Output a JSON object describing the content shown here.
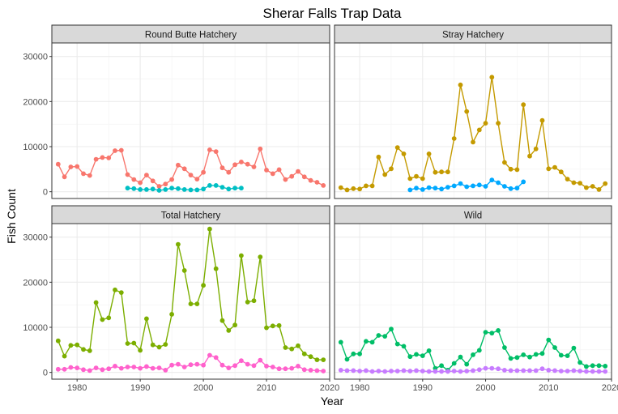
{
  "chart_data": {
    "type": "line",
    "title": "Sherar Falls Trap Data",
    "xlabel": "Year",
    "ylabel": "Fish Count",
    "xlim": [
      1976,
      2020
    ],
    "ylim": [
      -1500,
      33000
    ],
    "x_ticks": [
      1980,
      1990,
      2000,
      2010,
      2020
    ],
    "y_ticks": [
      0,
      10000,
      20000,
      30000
    ],
    "x_tick_labels": [
      "1980",
      "1990",
      "2000",
      "2010",
      "2020"
    ],
    "y_tick_labels": [
      "0",
      "10000",
      "20000",
      "30000"
    ],
    "grid": true,
    "legend": "none",
    "panels": [
      {
        "name": "Round Butte Hatchery",
        "series": [
          {
            "color": "#F8766D",
            "x": [
              1977,
              1978,
              1979,
              1980,
              1981,
              1982,
              1983,
              1984,
              1985,
              1986,
              1987,
              1988,
              1989,
              1990,
              1991,
              1992,
              1993,
              1994,
              1995,
              1996,
              1997,
              1998,
              1999,
              2000,
              2001,
              2002,
              2003,
              2004,
              2005,
              2006,
              2007,
              2008,
              2009,
              2010,
              2011,
              2012,
              2013,
              2014,
              2015,
              2016,
              2017,
              2018,
              2019
            ],
            "y": [
              6100,
              3300,
              5500,
              5600,
              4000,
              3600,
              7200,
              7600,
              7500,
              9100,
              9200,
              3800,
              2700,
              2000,
              3700,
              2400,
              1200,
              1700,
              2700,
              5900,
              5100,
              3700,
              2800,
              4300,
              9300,
              8900,
              5300,
              4300,
              6000,
              6600,
              6100,
              5500,
              9500,
              4800,
              4000,
              4900,
              2700,
              3400,
              4500,
              3300,
              2500,
              2100,
              1400
            ]
          },
          {
            "color": "#00BFC4",
            "x": [
              1988,
              1989,
              1990,
              1991,
              1992,
              1993,
              1994,
              1995,
              1996,
              1997,
              1998,
              1999,
              2000,
              2001,
              2002,
              2003,
              2004,
              2005,
              2006
            ],
            "y": [
              800,
              700,
              500,
              500,
              600,
              300,
              500,
              800,
              700,
              500,
              400,
              400,
              600,
              1400,
              1400,
              1000,
              600,
              800,
              800
            ]
          }
        ]
      },
      {
        "name": "Stray Hatchery",
        "series": [
          {
            "color": "#C49A00",
            "x": [
              1977,
              1978,
              1979,
              1980,
              1981,
              1982,
              1983,
              1984,
              1985,
              1986,
              1987,
              1988,
              1989,
              1990,
              1991,
              1992,
              1993,
              1994,
              1995,
              1996,
              1997,
              1998,
              1999,
              2000,
              2001,
              2002,
              2003,
              2004,
              2005,
              2006,
              2007,
              2008,
              2009,
              2010,
              2011,
              2012,
              2013,
              2014,
              2015,
              2016,
              2017,
              2018,
              2019
            ],
            "y": [
              900,
              400,
              700,
              600,
              1300,
              1300,
              7700,
              3800,
              5100,
              9800,
              8400,
              2900,
              3400,
              2900,
              8400,
              4300,
              4400,
              4400,
              11800,
              23700,
              17800,
              11000,
              13700,
              15200,
              25400,
              15200,
              6500,
              5000,
              4900,
              19300,
              7900,
              9500,
              15800,
              5100,
              5400,
              4400,
              2800,
              2000,
              1900,
              900,
              1200,
              500,
              1800
            ]
          },
          {
            "color": "#00A9FF",
            "x": [
              1988,
              1989,
              1990,
              1991,
              1992,
              1993,
              1994,
              1995,
              1996,
              1997,
              1998,
              1999,
              2000,
              2001,
              2002,
              2003,
              2004,
              2005,
              2006
            ],
            "y": [
              400,
              800,
              500,
              900,
              800,
              600,
              1000,
              1300,
              1800,
              1100,
              1300,
              1500,
              1200,
              2600,
              2000,
              1200,
              700,
              800,
              2200
            ]
          }
        ]
      },
      {
        "name": "Total Hatchery",
        "series": [
          {
            "color": "#7CAE00",
            "x": [
              1977,
              1978,
              1979,
              1980,
              1981,
              1982,
              1983,
              1984,
              1985,
              1986,
              1987,
              1988,
              1989,
              1990,
              1991,
              1992,
              1993,
              1994,
              1995,
              1996,
              1997,
              1998,
              1999,
              2000,
              2001,
              2002,
              2003,
              2004,
              2005,
              2006,
              2007,
              2008,
              2009,
              2010,
              2011,
              2012,
              2013,
              2014,
              2015,
              2016,
              2017,
              2018,
              2019
            ],
            "y": [
              7000,
              3600,
              6000,
              6100,
              5100,
              4800,
              15500,
              11700,
              12100,
              18300,
              17700,
              6400,
              6500,
              4900,
              11900,
              6100,
              5600,
              6200,
              12900,
              28400,
              22600,
              15200,
              15200,
              19300,
              31800,
              23000,
              11500,
              9300,
              10500,
              25900,
              15600,
              15900,
              25600,
              9900,
              10300,
              10400,
              5500,
              5200,
              5900,
              4100,
              3500,
              2800,
              2800
            ]
          },
          {
            "color": "#FF61CC",
            "x": [
              1977,
              1978,
              1979,
              1980,
              1981,
              1982,
              1983,
              1984,
              1985,
              1986,
              1987,
              1988,
              1989,
              1990,
              1991,
              1992,
              1993,
              1994,
              1995,
              1996,
              1997,
              1998,
              1999,
              2000,
              2001,
              2002,
              2003,
              2004,
              2005,
              2006,
              2007,
              2008,
              2009,
              2010,
              2011,
              2012,
              2013,
              2014,
              2015,
              2016,
              2017,
              2018,
              2019
            ],
            "y": [
              700,
              700,
              1100,
              1000,
              600,
              400,
              1000,
              600,
              800,
              1400,
              900,
              1200,
              1200,
              900,
              1300,
              900,
              1000,
              500,
              1600,
              1800,
              1200,
              1700,
              1800,
              1600,
              3800,
              3300,
              1600,
              1000,
              1500,
              2600,
              1800,
              1500,
              2700,
              1400,
              1200,
              800,
              800,
              900,
              1400,
              600,
              500,
              400,
              300
            ]
          }
        ]
      },
      {
        "name": "Wild",
        "series": [
          {
            "color": "#00BE67",
            "x": [
              1977,
              1978,
              1979,
              1980,
              1981,
              1982,
              1983,
              1984,
              1985,
              1986,
              1987,
              1988,
              1989,
              1990,
              1991,
              1992,
              1993,
              1994,
              1995,
              1996,
              1997,
              1998,
              1999,
              2000,
              2001,
              2002,
              2003,
              2004,
              2005,
              2006,
              2007,
              2008,
              2009,
              2010,
              2011,
              2012,
              2013,
              2014,
              2015,
              2016,
              2017,
              2018,
              2019
            ],
            "y": [
              6700,
              2900,
              4100,
              4100,
              6900,
              6700,
              8200,
              8000,
              9600,
              6300,
              5800,
              3500,
              4000,
              3700,
              4800,
              900,
              1500,
              500,
              2000,
              3400,
              1800,
              3900,
              4900,
              8900,
              8700,
              9300,
              5500,
              3100,
              3300,
              3900,
              3400,
              4000,
              4200,
              7200,
              5500,
              3800,
              3700,
              5400,
              2200,
              1300,
              1500,
              1500,
              1400
            ]
          },
          {
            "color": "#C77CFF",
            "x": [
              1977,
              1978,
              1979,
              1980,
              1981,
              1982,
              1983,
              1984,
              1985,
              1986,
              1987,
              1988,
              1989,
              1990,
              1991,
              1992,
              1993,
              1994,
              1995,
              1996,
              1997,
              1998,
              1999,
              2000,
              2001,
              2002,
              2003,
              2004,
              2005,
              2006,
              2007,
              2008,
              2009,
              2010,
              2011,
              2012,
              2013,
              2014,
              2015,
              2016,
              2017,
              2018,
              2019
            ],
            "y": [
              500,
              400,
              400,
              300,
              400,
              200,
              300,
              200,
              300,
              300,
              400,
              300,
              400,
              300,
              200,
              200,
              200,
              200,
              300,
              200,
              300,
              400,
              600,
              900,
              900,
              800,
              500,
              400,
              400,
              400,
              400,
              400,
              800,
              500,
              400,
              300,
              300,
              400,
              300,
              200,
              200,
              200,
              200
            ]
          }
        ]
      }
    ]
  }
}
